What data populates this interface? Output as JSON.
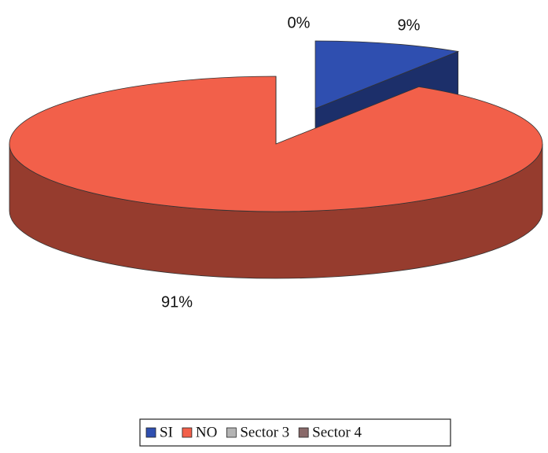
{
  "chart_data": {
    "type": "pie",
    "categories": [
      "SI",
      "NO",
      "Sector 3",
      "Sector 4"
    ],
    "values": [
      9,
      91,
      0,
      0
    ],
    "value_labels": [
      "9%",
      "91%",
      "0%",
      null
    ],
    "colors": [
      "#2f4fb0",
      "#f2604a",
      "#b4b4b4",
      "#8a6a6a"
    ],
    "legend": "bottom"
  }
}
